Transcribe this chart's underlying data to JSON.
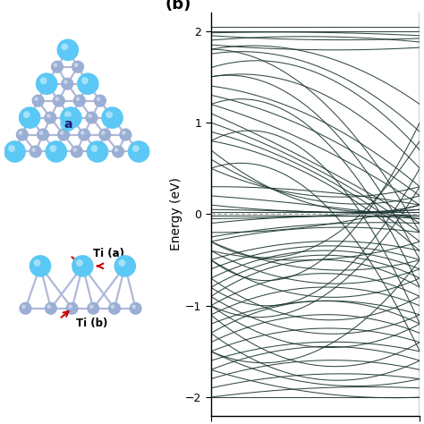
{
  "title_b": "(b)",
  "ylabel": "Energy (eV)",
  "ylim": [
    -2.2,
    2.2
  ],
  "yticks": [
    -2,
    -1,
    0,
    1,
    2
  ],
  "fermi_level": 0.0,
  "band_color": "#1a3530",
  "fermi_color": "#999999",
  "background_color": "#ffffff",
  "ti_a_color": "#5bc8f5",
  "ti_b_color": "#9bafd4",
  "bond_color": "#b0b8d8",
  "label_a": "Ti (a)",
  "label_b": "Ti (b)",
  "label_lattice": "a",
  "arrow_color": "#cc0000"
}
